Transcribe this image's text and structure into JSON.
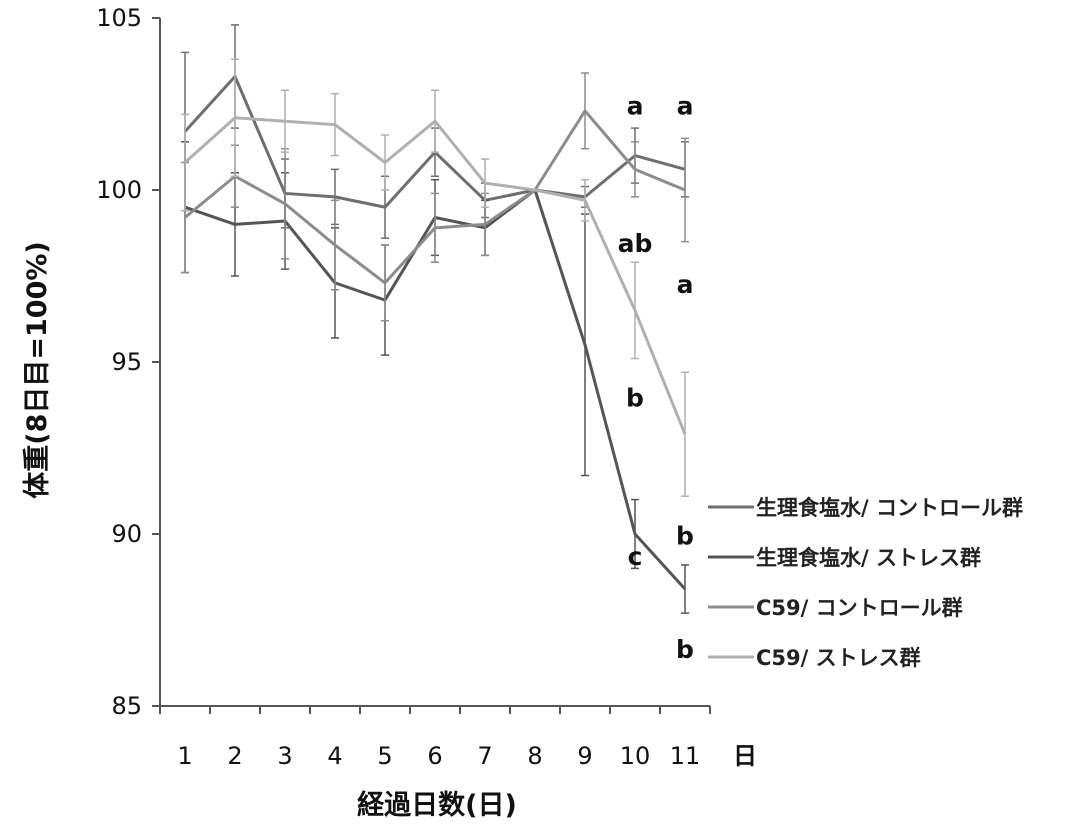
{
  "chart_data": {
    "type": "line",
    "title": "",
    "xlabel": "経過日数(日)",
    "ylabel": "体重(8日目=100%)",
    "x_unit_label": "日",
    "x": [
      1,
      2,
      3,
      4,
      5,
      6,
      7,
      8,
      9,
      10,
      11
    ],
    "x_tick_labels": [
      "1",
      "2",
      "3",
      "4",
      "5",
      "6",
      "7",
      "8",
      "9",
      "10",
      "11"
    ],
    "ylim": [
      85,
      105
    ],
    "y_ticks": [
      85,
      90,
      95,
      100,
      105
    ],
    "y_tick_labels": [
      "85",
      "90",
      "95",
      "100",
      "105"
    ],
    "grid": false,
    "legend_position": "right",
    "series": [
      {
        "name": "生理食塩水/ コントロール群",
        "color": "#6e6e6e",
        "values": [
          101.7,
          103.3,
          99.9,
          99.8,
          99.5,
          101.1,
          99.7,
          100.0,
          99.8,
          101.0,
          100.6
        ],
        "errors": [
          2.3,
          1.5,
          1.0,
          0.8,
          0.9,
          0.7,
          0.5,
          0.0,
          0.3,
          0.8,
          0.8
        ]
      },
      {
        "name": "生理食塩水/ ストレス群",
        "color": "#555555",
        "values": [
          99.5,
          99.0,
          99.1,
          97.3,
          96.8,
          99.2,
          98.9,
          100.0,
          95.5,
          90.0,
          88.4
        ],
        "errors": [
          1.9,
          1.5,
          1.4,
          1.6,
          1.6,
          1.1,
          0.8,
          0.0,
          3.8,
          1.0,
          0.7
        ]
      },
      {
        "name": "C59/ コントロール群",
        "color": "#8c8c8c",
        "values": [
          99.2,
          100.4,
          99.6,
          98.4,
          97.3,
          98.9,
          99.0,
          100.0,
          102.3,
          100.6,
          100.0
        ],
        "errors": [
          1.6,
          0.9,
          1.6,
          1.3,
          1.1,
          1.0,
          0.9,
          0.0,
          1.1,
          0.8,
          1.5
        ]
      },
      {
        "name": "C59/ ストレス群",
        "color": "#b0b0b0",
        "values": [
          100.8,
          102.1,
          102.0,
          101.9,
          100.8,
          102.0,
          100.2,
          100.0,
          99.7,
          96.5,
          92.9
        ],
        "errors": [
          1.4,
          1.7,
          0.9,
          0.9,
          0.8,
          0.9,
          0.7,
          0.0,
          0.6,
          1.4,
          1.8
        ]
      }
    ],
    "annotations": [
      {
        "text": "a",
        "x": 10,
        "y": 102.2
      },
      {
        "text": "a",
        "x": 11,
        "y": 102.2
      },
      {
        "text": "ab",
        "x": 10,
        "y": 98.2
      },
      {
        "text": "a",
        "x": 11,
        "y": 97.0
      },
      {
        "text": "b",
        "x": 10,
        "y": 93.7
      },
      {
        "text": "b",
        "x": 11,
        "y": 89.7
      },
      {
        "text": "c",
        "x": 10,
        "y": 89.1
      },
      {
        "text": "b",
        "x": 11,
        "y": 86.4
      }
    ]
  }
}
